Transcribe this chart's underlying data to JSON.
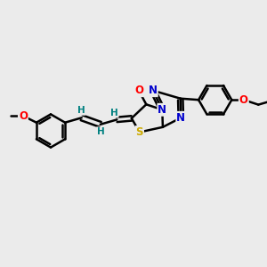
{
  "background_color": "#ebebeb",
  "bond_color": "#000000",
  "bond_width": 1.8,
  "atom_colors": {
    "O": "#ff0000",
    "N": "#0000cd",
    "S": "#ccaa00",
    "H": "#008080",
    "C": "#000000"
  },
  "font_size": 8.5,
  "fig_width": 3.0,
  "fig_height": 3.0,
  "dpi": 100
}
